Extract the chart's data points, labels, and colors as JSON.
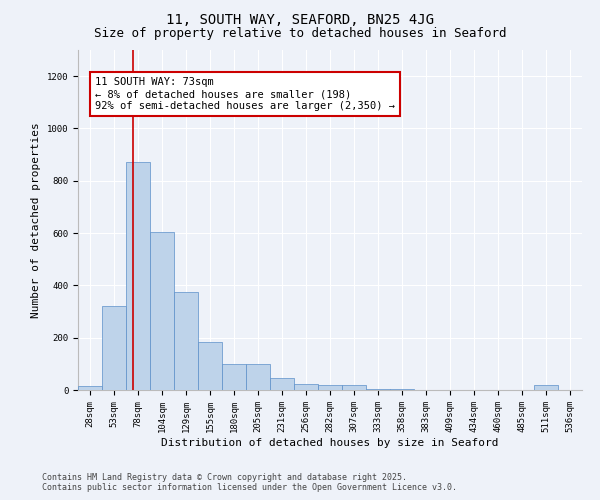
{
  "title": "11, SOUTH WAY, SEAFORD, BN25 4JG",
  "subtitle": "Size of property relative to detached houses in Seaford",
  "xlabel": "Distribution of detached houses by size in Seaford",
  "ylabel": "Number of detached properties",
  "categories": [
    "28sqm",
    "53sqm",
    "78sqm",
    "104sqm",
    "129sqm",
    "155sqm",
    "180sqm",
    "205sqm",
    "231sqm",
    "256sqm",
    "282sqm",
    "307sqm",
    "333sqm",
    "358sqm",
    "383sqm",
    "409sqm",
    "434sqm",
    "460sqm",
    "485sqm",
    "511sqm",
    "536sqm"
  ],
  "values": [
    15,
    320,
    870,
    605,
    375,
    185,
    100,
    100,
    45,
    22,
    18,
    18,
    3,
    5,
    0,
    0,
    0,
    0,
    0,
    20,
    0
  ],
  "bar_color": "#bed3ea",
  "bar_edge_color": "#5b8fc9",
  "vline_x_index": 1.8,
  "vline_color": "#cc0000",
  "annotation_text": "11 SOUTH WAY: 73sqm\n← 8% of detached houses are smaller (198)\n92% of semi-detached houses are larger (2,350) →",
  "annotation_box_color": "#ffffff",
  "annotation_box_edge_color": "#cc0000",
  "ylim": [
    0,
    1300
  ],
  "yticks": [
    0,
    200,
    400,
    600,
    800,
    1000,
    1200
  ],
  "footer_line1": "Contains HM Land Registry data © Crown copyright and database right 2025.",
  "footer_line2": "Contains public sector information licensed under the Open Government Licence v3.0.",
  "background_color": "#eef2f9",
  "grid_color": "#ffffff",
  "title_fontsize": 10,
  "subtitle_fontsize": 9,
  "axis_label_fontsize": 8,
  "tick_fontsize": 6.5,
  "annotation_fontsize": 7.5,
  "footer_fontsize": 6,
  "ylabel_fontsize": 8
}
